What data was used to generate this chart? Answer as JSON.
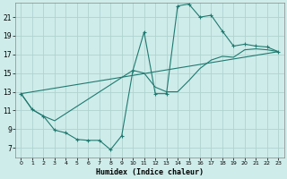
{
  "xlabel": "Humidex (Indice chaleur)",
  "background_color": "#ceecea",
  "grid_color": "#aed4d0",
  "line_color": "#1f7a70",
  "xlim": [
    -0.5,
    23.5
  ],
  "ylim": [
    6.0,
    22.5
  ],
  "xticks": [
    0,
    1,
    2,
    3,
    4,
    5,
    6,
    7,
    8,
    9,
    10,
    11,
    12,
    13,
    14,
    15,
    16,
    17,
    18,
    19,
    20,
    21,
    22,
    23
  ],
  "yticks": [
    7,
    9,
    11,
    13,
    15,
    17,
    19,
    21
  ],
  "line1_x": [
    0,
    1,
    2,
    3,
    4,
    5,
    6,
    7,
    8,
    9,
    10,
    11,
    12,
    13,
    14,
    15,
    16,
    17,
    18,
    19,
    20,
    21,
    22,
    23
  ],
  "line1_y": [
    12.8,
    11.1,
    10.4,
    8.9,
    8.6,
    7.9,
    7.8,
    7.8,
    6.8,
    8.3,
    15.3,
    19.4,
    12.8,
    12.8,
    22.2,
    22.4,
    21.0,
    21.2,
    19.5,
    17.9,
    18.1,
    17.9,
    17.8,
    17.3
  ],
  "line2_x": [
    0,
    1,
    2,
    3,
    10,
    11,
    12,
    13,
    14,
    15,
    16,
    17,
    18,
    19,
    20,
    21,
    22,
    23
  ],
  "line2_y": [
    12.8,
    11.1,
    10.4,
    9.9,
    15.3,
    15.0,
    13.5,
    13.0,
    13.0,
    14.2,
    15.5,
    16.4,
    16.8,
    16.7,
    17.5,
    17.6,
    17.5,
    17.3
  ],
  "line3_x": [
    0,
    23
  ],
  "line3_y": [
    12.8,
    17.3
  ]
}
